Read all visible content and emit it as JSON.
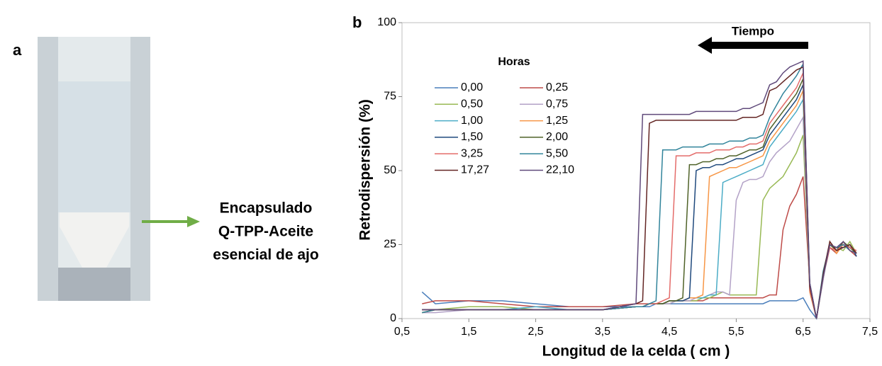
{
  "panel_a": "a",
  "annotation": [
    "Encapsulado",
    "Q-TPP-Aceite",
    "esencial de ajo"
  ],
  "chart_data": {
    "type": "line",
    "panel_label": "b",
    "arrow_label": "Tiempo",
    "legend_title": "Horas",
    "y_label": "Retrodispersión (%)",
    "x_label": "Longitud de la celda ( cm )",
    "xlim": [
      0.5,
      7.5
    ],
    "ylim": [
      0,
      100
    ],
    "xticks": [
      {
        "value": 0.5,
        "label": "0,5"
      },
      {
        "value": 1.5,
        "label": "1,5"
      },
      {
        "value": 2.5,
        "label": "2,5"
      },
      {
        "value": 3.5,
        "label": "3,5"
      },
      {
        "value": 4.5,
        "label": "4,5"
      },
      {
        "value": 5.5,
        "label": "5,5"
      },
      {
        "value": 6.5,
        "label": "6,5"
      },
      {
        "value": 7.5,
        "label": "7,5"
      }
    ],
    "yticks": [
      0,
      25,
      50,
      75,
      100
    ],
    "x": [
      0.8,
      1.0,
      1.5,
      2.0,
      2.5,
      3.0,
      3.5,
      4.0,
      4.1,
      4.2,
      4.3,
      4.4,
      4.5,
      4.6,
      4.7,
      4.8,
      4.9,
      5.0,
      5.1,
      5.2,
      5.3,
      5.4,
      5.5,
      5.6,
      5.7,
      5.8,
      5.9,
      6.0,
      6.1,
      6.2,
      6.3,
      6.4,
      6.5,
      6.6,
      6.7,
      6.8,
      6.9,
      7.0,
      7.1,
      7.2,
      7.3
    ],
    "series": [
      {
        "name": "0,00",
        "color": "#4a7ebb",
        "values": [
          9,
          5,
          6,
          6,
          5,
          4,
          4,
          4,
          4,
          4,
          5,
          5,
          5,
          5,
          5,
          5,
          5,
          5,
          5,
          5,
          5,
          5,
          5,
          5,
          5,
          5,
          5,
          6,
          6,
          6,
          6,
          6,
          7,
          3,
          0,
          15,
          26,
          23,
          25,
          24,
          22
        ]
      },
      {
        "name": "0,25",
        "color": "#be4b48",
        "values": [
          5,
          6,
          6,
          5,
          4,
          4,
          4,
          5,
          5,
          5,
          5,
          5,
          6,
          6,
          6,
          6,
          6,
          6,
          7,
          7,
          7,
          7,
          7,
          7,
          7,
          7,
          7,
          8,
          8,
          30,
          38,
          42,
          48,
          12,
          0,
          14,
          24,
          22,
          26,
          23,
          21
        ]
      },
      {
        "name": "0,50",
        "color": "#98b954",
        "values": [
          3,
          3,
          4,
          4,
          3,
          3,
          3,
          4,
          4,
          5,
          5,
          5,
          5,
          6,
          6,
          6,
          6,
          7,
          7,
          8,
          9,
          8,
          8,
          8,
          8,
          8,
          40,
          44,
          46,
          48,
          52,
          56,
          62,
          10,
          0,
          15,
          25,
          24,
          23,
          26,
          22
        ]
      },
      {
        "name": "0,75",
        "color": "#b3a2c7",
        "values": [
          2,
          2,
          3,
          3,
          3,
          3,
          3,
          4,
          4,
          5,
          5,
          5,
          5,
          6,
          6,
          6,
          7,
          7,
          8,
          9,
          9,
          8,
          40,
          46,
          47,
          47,
          48,
          53,
          56,
          58,
          60,
          64,
          68,
          9,
          0,
          13,
          26,
          23,
          24,
          25,
          22
        ]
      },
      {
        "name": "1,00",
        "color": "#4bacc6",
        "values": [
          3,
          3,
          3,
          3,
          4,
          3,
          3,
          4,
          4,
          5,
          5,
          5,
          6,
          6,
          6,
          7,
          7,
          7,
          8,
          8,
          46,
          47,
          48,
          49,
          50,
          51,
          52,
          58,
          61,
          64,
          67,
          70,
          74,
          10,
          0,
          15,
          25,
          23,
          25,
          24,
          22
        ]
      },
      {
        "name": "1,25",
        "color": "#f79646",
        "values": [
          2,
          3,
          3,
          3,
          3,
          3,
          3,
          4,
          4,
          5,
          5,
          5,
          6,
          6,
          6,
          7,
          7,
          8,
          48,
          49,
          50,
          51,
          51,
          52,
          53,
          54,
          55,
          60,
          63,
          66,
          69,
          72,
          77,
          9,
          0,
          14,
          26,
          22,
          25,
          23,
          22
        ]
      },
      {
        "name": "1,50",
        "color": "#1f497d",
        "values": [
          3,
          3,
          3,
          3,
          3,
          3,
          3,
          4,
          4,
          5,
          5,
          5,
          6,
          6,
          6,
          7,
          50,
          51,
          51,
          52,
          52,
          53,
          54,
          54,
          55,
          56,
          57,
          62,
          65,
          68,
          71,
          74,
          79,
          10,
          0,
          15,
          25,
          24,
          24,
          25,
          21
        ]
      },
      {
        "name": "2,00",
        "color": "#4f6228",
        "values": [
          2,
          3,
          3,
          3,
          3,
          3,
          3,
          4,
          4,
          5,
          5,
          5,
          6,
          6,
          7,
          52,
          52,
          53,
          53,
          54,
          54,
          55,
          55,
          56,
          57,
          57,
          58,
          64,
          67,
          70,
          73,
          76,
          81,
          11,
          0,
          14,
          25,
          23,
          26,
          24,
          22
        ]
      },
      {
        "name": "3,25",
        "color": "#e46c6a",
        "values": [
          3,
          3,
          3,
          3,
          3,
          3,
          3,
          4,
          4,
          5,
          5,
          6,
          7,
          55,
          55,
          55,
          56,
          56,
          56,
          57,
          57,
          57,
          58,
          58,
          59,
          59,
          60,
          66,
          69,
          72,
          75,
          78,
          83,
          10,
          0,
          15,
          24,
          23,
          25,
          24,
          23
        ]
      },
      {
        "name": "5,50",
        "color": "#31849b",
        "values": [
          2,
          3,
          3,
          3,
          3,
          3,
          3,
          4,
          4,
          5,
          6,
          57,
          57,
          57,
          58,
          58,
          58,
          58,
          59,
          59,
          59,
          60,
          60,
          60,
          61,
          61,
          62,
          68,
          72,
          76,
          79,
          82,
          86,
          12,
          0,
          16,
          25,
          24,
          25,
          23,
          22
        ]
      },
      {
        "name": "17,27",
        "color": "#632523",
        "values": [
          3,
          3,
          3,
          3,
          3,
          3,
          3,
          5,
          6,
          66,
          67,
          67,
          67,
          67,
          67,
          67,
          67,
          67,
          67,
          67,
          67,
          67,
          67,
          68,
          68,
          68,
          69,
          77,
          78,
          80,
          82,
          84,
          85,
          11,
          0,
          15,
          26,
          23,
          24,
          25,
          22
        ]
      },
      {
        "name": "22,10",
        "color": "#604a7b",
        "values": [
          3,
          3,
          3,
          3,
          3,
          3,
          3,
          5,
          69,
          69,
          69,
          69,
          69,
          69,
          69,
          69,
          70,
          70,
          70,
          70,
          70,
          70,
          70,
          71,
          71,
          72,
          73,
          79,
          80,
          83,
          85,
          86,
          87,
          12,
          0,
          14,
          25,
          24,
          26,
          23,
          22
        ]
      }
    ]
  }
}
